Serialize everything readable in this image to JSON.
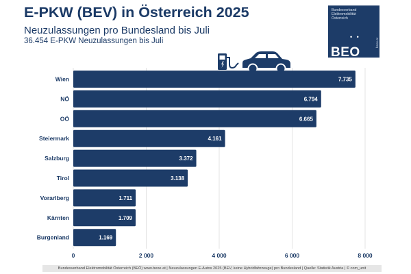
{
  "header": {
    "title": "E-PKW (BEV) in Österreich 2025",
    "subtitle": "Neuzulassungen pro Bundesland bis Juli",
    "subsubtitle": "36.454 E-PKW Neuzulassungen bis Juli"
  },
  "logo": {
    "text": "Bundesverband Elektromobilität Österreich",
    "dots": "• •",
    "mark": "BEO",
    "side": "beoe.at"
  },
  "footer": {
    "text": "Bundesverband Elektromobilität Österreich (BEÖ) www.beoe.at | Neuzulassungen E-Autos 2025 (BEV, keine Hybridfahrzeuge) pro Bundesland | Quelle: Statistik Austria | © com_unit"
  },
  "colors": {
    "bar": "#1d3c68",
    "text": "#1b3a66",
    "grid": "#e3e3e3"
  },
  "icons": [
    "charging-station-icon",
    "car-icon"
  ],
  "chart_data": {
    "type": "bar",
    "orientation": "horizontal",
    "categories": [
      "Wien",
      "NÖ",
      "OÖ",
      "Steiermark",
      "Salzburg",
      "Tirol",
      "Vorarlberg",
      "Kärnten",
      "Burgenland"
    ],
    "values": [
      7735,
      6794,
      6665,
      4161,
      3372,
      3138,
      1711,
      1709,
      1169
    ],
    "value_labels": [
      "7.735",
      "6.794",
      "6.665",
      "4.161",
      "3.372",
      "3.138",
      "1.711",
      "1.709",
      "1.169"
    ],
    "xticks": [
      0,
      2000,
      4000,
      6000,
      8000
    ],
    "xtick_labels": [
      "0",
      "2 000",
      "4 000",
      "6 000",
      "8 000"
    ],
    "xlim": [
      0,
      8000
    ],
    "title": "E-PKW (BEV) in Österreich 2025",
    "xlabel": "",
    "ylabel": "",
    "grid": true
  }
}
